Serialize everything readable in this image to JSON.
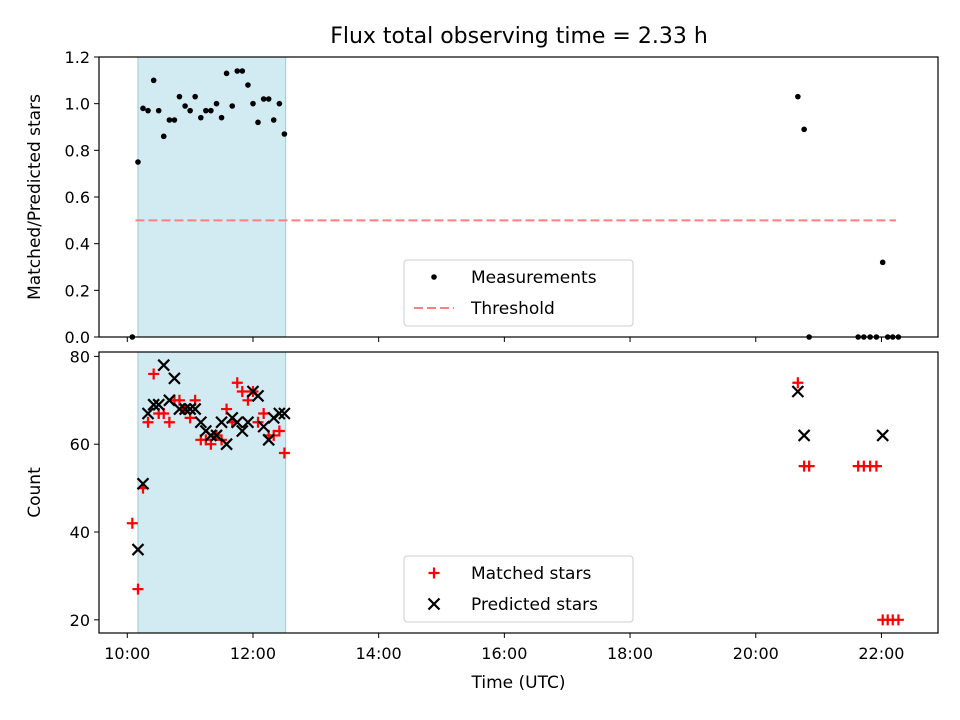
{
  "title": "Flux total observing time = 2.33 h",
  "chart_data": [
    {
      "type": "scatter",
      "ylabel": "Matched/Predicted stars",
      "xlim": [
        9.55,
        22.9
      ],
      "ylim": [
        0,
        1.2
      ],
      "y_ticks": [
        0.0,
        0.2,
        0.4,
        0.6,
        0.8,
        1.0,
        1.2
      ],
      "y_tick_labels": [
        "0.0",
        "0.2",
        "0.4",
        "0.6",
        "0.8",
        "1.0",
        "1.2"
      ],
      "x_ticks": [
        10,
        12,
        14,
        16,
        18,
        20,
        22
      ],
      "shaded_interval": [
        10.17,
        12.52
      ],
      "shade_color": "#add8e6",
      "legend_position": "lower center",
      "series": [
        {
          "name": "Measurements",
          "marker": "dot",
          "color": "#000000",
          "points": [
            [
              10.08,
              0.0
            ],
            [
              10.17,
              0.75
            ],
            [
              10.25,
              0.98
            ],
            [
              10.33,
              0.97
            ],
            [
              10.42,
              1.1
            ],
            [
              10.5,
              0.97
            ],
            [
              10.58,
              0.86
            ],
            [
              10.67,
              0.93
            ],
            [
              10.75,
              0.93
            ],
            [
              10.83,
              1.03
            ],
            [
              10.92,
              0.99
            ],
            [
              11.0,
              0.97
            ],
            [
              11.08,
              1.03
            ],
            [
              11.17,
              0.94
            ],
            [
              11.25,
              0.97
            ],
            [
              11.33,
              0.97
            ],
            [
              11.42,
              1.0
            ],
            [
              11.5,
              0.94
            ],
            [
              11.58,
              1.13
            ],
            [
              11.67,
              0.99
            ],
            [
              11.75,
              1.14
            ],
            [
              11.83,
              1.14
            ],
            [
              11.92,
              1.08
            ],
            [
              12.0,
              1.0
            ],
            [
              12.08,
              0.92
            ],
            [
              12.17,
              1.02
            ],
            [
              12.25,
              1.02
            ],
            [
              12.33,
              0.93
            ],
            [
              12.42,
              1.0
            ],
            [
              12.5,
              0.87
            ],
            [
              20.67,
              1.03
            ],
            [
              20.77,
              0.89
            ],
            [
              20.85,
              0.0
            ],
            [
              21.63,
              0.0
            ],
            [
              21.72,
              0.0
            ],
            [
              21.82,
              0.0
            ],
            [
              21.92,
              0.0
            ],
            [
              22.02,
              0.32
            ],
            [
              22.1,
              0.0
            ],
            [
              22.18,
              0.0
            ],
            [
              22.27,
              0.0
            ]
          ]
        },
        {
          "name": "Threshold",
          "line_style": "dashed",
          "color": "#ff7f7f",
          "points": [
            [
              10.13,
              0.5
            ],
            [
              22.23,
              0.5
            ]
          ]
        }
      ]
    },
    {
      "type": "scatter",
      "xlabel": "Time (UTC)",
      "ylabel": "Count",
      "xlim": [
        9.55,
        22.9
      ],
      "ylim": [
        17,
        81
      ],
      "y_ticks": [
        20,
        40,
        60,
        80
      ],
      "y_tick_labels": [
        "20",
        "40",
        "60",
        "80"
      ],
      "x_ticks": [
        10,
        12,
        14,
        16,
        18,
        20,
        22
      ],
      "x_tick_labels": [
        "10:00",
        "12:00",
        "14:00",
        "16:00",
        "18:00",
        "20:00",
        "22:00"
      ],
      "shaded_interval": [
        10.17,
        12.52
      ],
      "shade_color": "#add8e6",
      "legend_position": "lower center",
      "series": [
        {
          "name": "Matched stars",
          "marker": "plus",
          "color": "#ff0000",
          "points": [
            [
              10.08,
              42
            ],
            [
              10.17,
              27
            ],
            [
              10.25,
              50
            ],
            [
              10.33,
              65
            ],
            [
              10.42,
              76
            ],
            [
              10.5,
              67
            ],
            [
              10.58,
              67
            ],
            [
              10.67,
              65
            ],
            [
              10.75,
              70
            ],
            [
              10.83,
              70
            ],
            [
              10.92,
              68
            ],
            [
              11.0,
              66
            ],
            [
              11.08,
              70
            ],
            [
              11.17,
              61
            ],
            [
              11.25,
              61
            ],
            [
              11.33,
              60
            ],
            [
              11.42,
              62
            ],
            [
              11.5,
              61
            ],
            [
              11.58,
              68
            ],
            [
              11.67,
              65
            ],
            [
              11.75,
              74
            ],
            [
              11.83,
              72
            ],
            [
              11.92,
              70
            ],
            [
              12.0,
              72
            ],
            [
              12.08,
              65
            ],
            [
              12.17,
              67
            ],
            [
              12.25,
              62
            ],
            [
              12.33,
              62
            ],
            [
              12.42,
              63
            ],
            [
              12.5,
              58
            ],
            [
              20.67,
              74
            ],
            [
              20.77,
              55
            ],
            [
              20.85,
              55
            ],
            [
              21.63,
              55
            ],
            [
              21.72,
              55
            ],
            [
              21.82,
              55
            ],
            [
              21.92,
              55
            ],
            [
              22.02,
              20
            ],
            [
              22.1,
              20
            ],
            [
              22.18,
              20
            ],
            [
              22.27,
              20
            ]
          ]
        },
        {
          "name": "Predicted stars",
          "marker": "x",
          "color": "#000000",
          "points": [
            [
              10.17,
              36
            ],
            [
              10.25,
              51
            ],
            [
              10.33,
              67
            ],
            [
              10.42,
              69
            ],
            [
              10.5,
              69
            ],
            [
              10.58,
              78
            ],
            [
              10.67,
              70
            ],
            [
              10.75,
              75
            ],
            [
              10.83,
              68
            ],
            [
              10.92,
              68
            ],
            [
              11.0,
              68
            ],
            [
              11.08,
              68
            ],
            [
              11.17,
              65
            ],
            [
              11.25,
              63
            ],
            [
              11.33,
              62
            ],
            [
              11.42,
              62
            ],
            [
              11.5,
              65
            ],
            [
              11.58,
              60
            ],
            [
              11.67,
              66
            ],
            [
              11.75,
              65
            ],
            [
              11.83,
              63
            ],
            [
              11.92,
              65
            ],
            [
              12.0,
              72
            ],
            [
              12.08,
              71
            ],
            [
              12.17,
              64
            ],
            [
              12.25,
              61
            ],
            [
              12.33,
              66
            ],
            [
              12.42,
              67
            ],
            [
              12.5,
              67
            ],
            [
              20.67,
              72
            ],
            [
              20.77,
              62
            ],
            [
              22.02,
              62
            ]
          ]
        }
      ]
    }
  ]
}
